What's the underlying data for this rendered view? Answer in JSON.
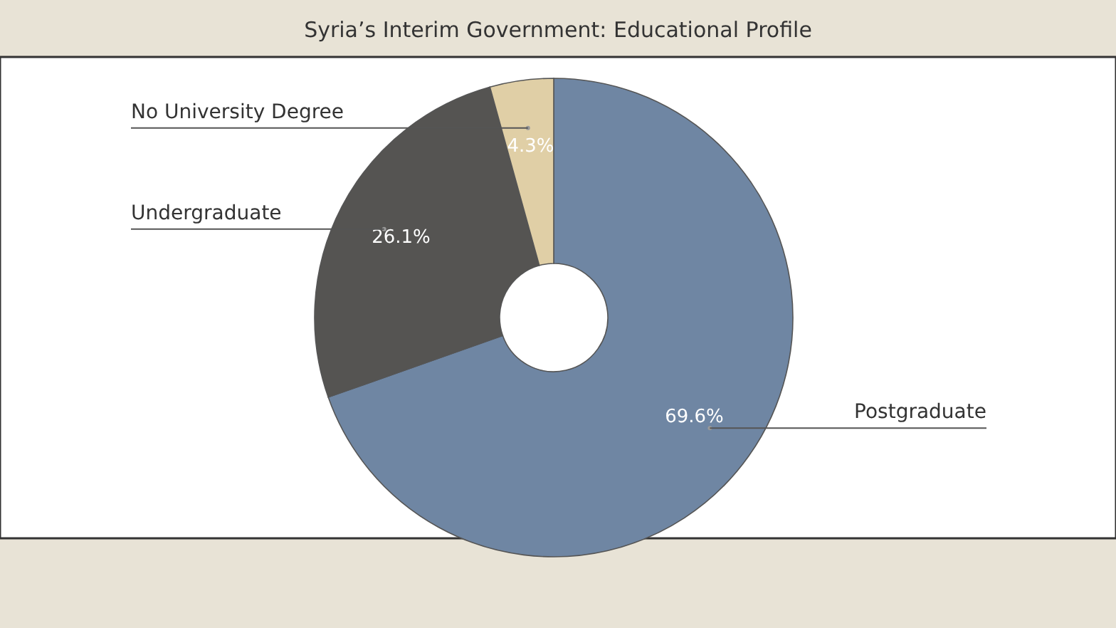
{
  "chart_data": {
    "type": "donut",
    "title": "Syria’s Interim Government: Educational Profile",
    "categories": [
      "Postgraduate",
      "Undergraduate",
      "No University Degree"
    ],
    "values": [
      69.6,
      26.1,
      4.3
    ],
    "colors": [
      "#6f86a3",
      "#555452",
      "#e0cfa6"
    ],
    "value_labels": [
      "69.6%",
      "26.1%",
      "4.3%"
    ],
    "legend": false
  }
}
